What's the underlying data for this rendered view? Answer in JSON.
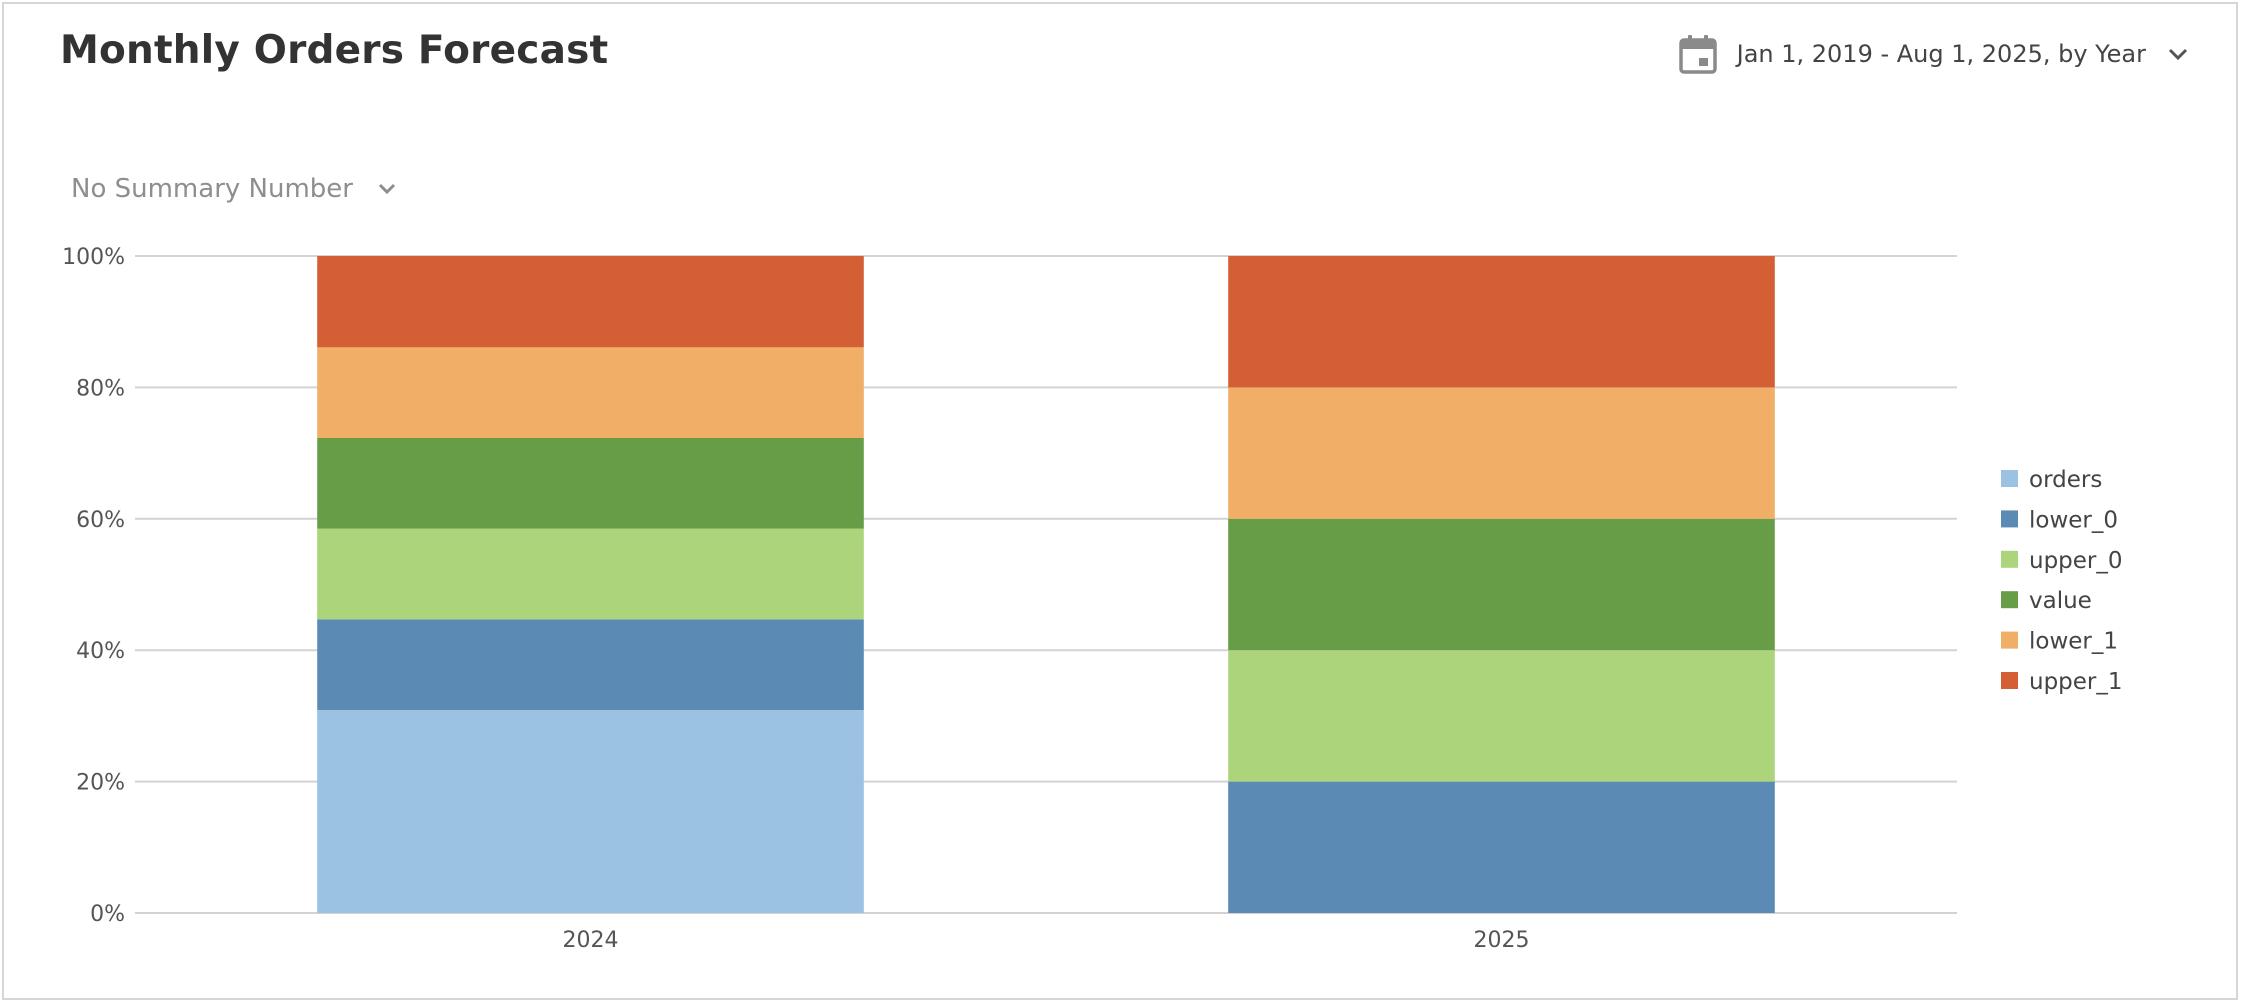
{
  "header": {
    "title": "Monthly Orders Forecast",
    "date_range": "Jan 1, 2019 - Aug 1, 2025, by Year",
    "date_icon": "calendar-icon",
    "dropdown_icon": "chevron-down-icon"
  },
  "summary": {
    "label": "No Summary Number",
    "dropdown_icon": "chevron-down-icon"
  },
  "chart_data": {
    "type": "bar",
    "stacked": "percent",
    "categories": [
      "2024",
      "2025"
    ],
    "series": [
      {
        "name": "orders",
        "color": "#9bc2e2",
        "values": [
          30.9,
          0
        ]
      },
      {
        "name": "lower_0",
        "color": "#5b8bb4",
        "values": [
          13.8,
          20
        ]
      },
      {
        "name": "upper_0",
        "color": "#acd57b",
        "values": [
          13.8,
          20
        ]
      },
      {
        "name": "value",
        "color": "#679d47",
        "values": [
          13.8,
          20
        ]
      },
      {
        "name": "lower_1",
        "color": "#f0ae66",
        "values": [
          13.8,
          20
        ]
      },
      {
        "name": "upper_1",
        "color": "#d45f35",
        "values": [
          13.9,
          20
        ]
      }
    ],
    "y_ticks": [
      "0%",
      "20%",
      "40%",
      "60%",
      "80%",
      "100%"
    ],
    "ylim": [
      0,
      100
    ],
    "grid": true,
    "legend_position": "right"
  }
}
